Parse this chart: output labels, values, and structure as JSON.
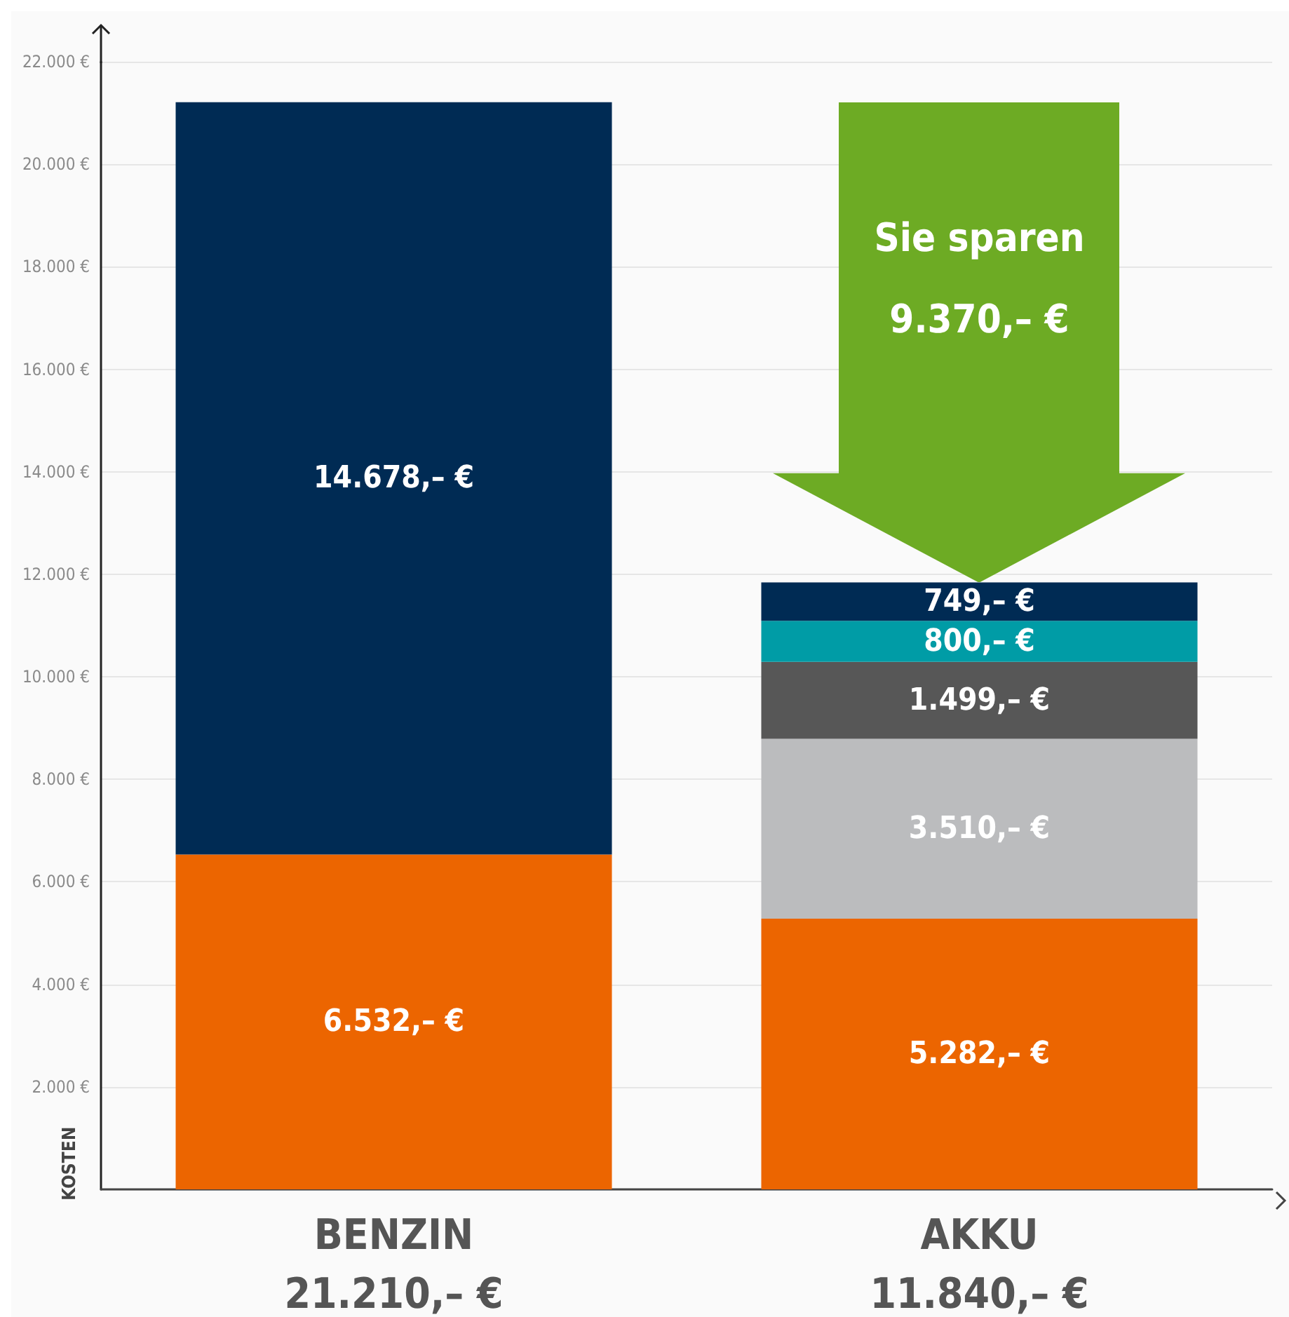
{
  "chart_data": {
    "type": "bar",
    "stacked": true,
    "ylabel": "KOSTEN",
    "categories": [
      "BENZIN",
      "AKKU"
    ],
    "series": [
      {
        "color": "#ec6500",
        "values": [
          6532,
          5282
        ],
        "value_labels": [
          "6.532,– €",
          "5.282,– €"
        ]
      },
      {
        "color": "#bbbcbe",
        "values": [
          null,
          3510
        ],
        "value_labels": [
          null,
          "3.510,– €"
        ]
      },
      {
        "color": "#575757",
        "values": [
          null,
          1499
        ],
        "value_labels": [
          null,
          "1.499,– €"
        ]
      },
      {
        "color": "#009ca6",
        "values": [
          null,
          800
        ],
        "value_labels": [
          null,
          "800,– €"
        ]
      },
      {
        "color": "#002b54",
        "values": [
          14678,
          749
        ],
        "value_labels": [
          "14.678,– €",
          "749,– €"
        ]
      }
    ],
    "totals": [
      "21.210,– €",
      "11.840,– €"
    ],
    "annotations": [
      "Sie sparen",
      "9.370,– €"
    ],
    "ylim": [
      0,
      22000
    ],
    "yticks": [
      {
        "value": 0,
        "label": null
      },
      {
        "value": 2000,
        "label": "2.000 €"
      },
      {
        "value": 4000,
        "label": "4.000 €"
      },
      {
        "value": 6000,
        "label": "6.000 €"
      },
      {
        "value": 8000,
        "label": "8.000 €"
      },
      {
        "value": 10000,
        "label": "10.000 €"
      },
      {
        "value": 12000,
        "label": "12.000 €"
      },
      {
        "value": 14000,
        "label": "14.000 €"
      },
      {
        "value": 16000,
        "label": "16.000 €"
      },
      {
        "value": 18000,
        "label": "18.000 €"
      },
      {
        "value": 20000,
        "label": "20.000 €"
      },
      {
        "value": 22000,
        "label": "22.000 €"
      }
    ],
    "grid": "y"
  }
}
